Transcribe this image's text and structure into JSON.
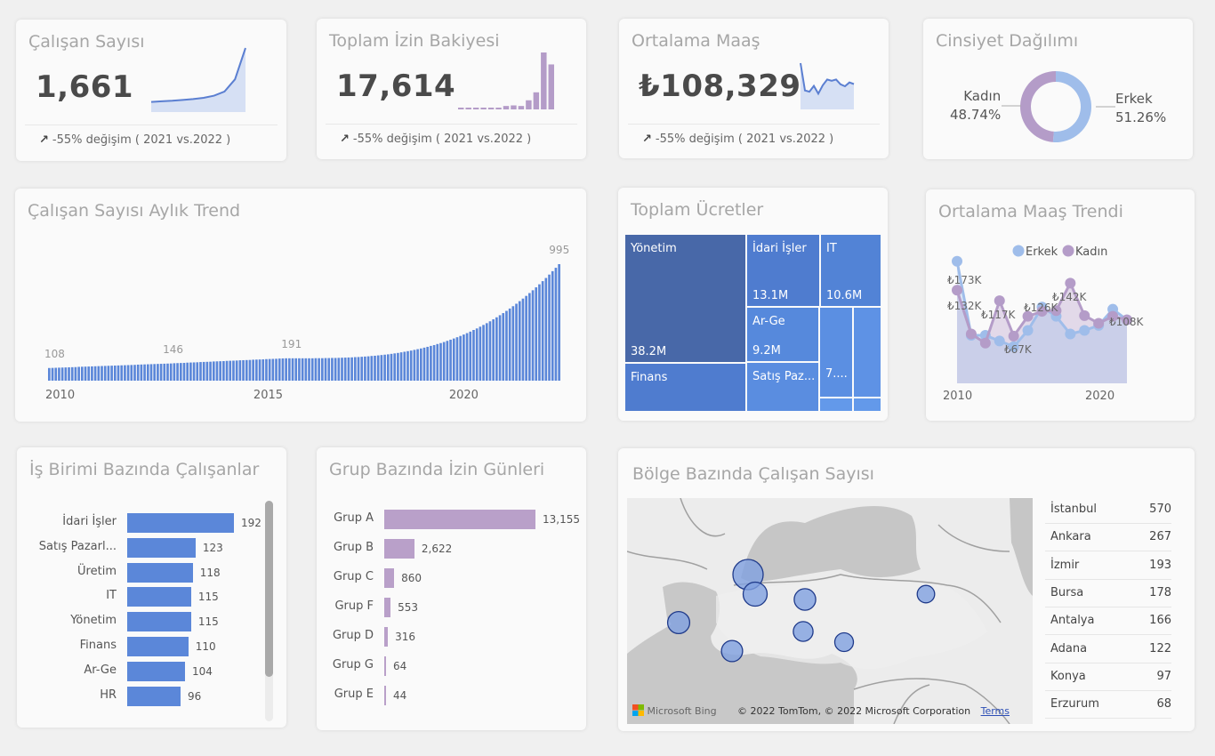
{
  "kpis": [
    {
      "title": "Çalışan Sayısı",
      "value": "1,661",
      "change_icon": "arrow-up-right-icon",
      "change_text": "-55% değişim ( 2021 vs.2022 )",
      "sparkline_type": "area",
      "sparkline_color": "#5b7fd1",
      "sparkline_values": [
        108,
        118,
        128,
        140,
        155,
        175,
        210,
        280,
        480,
        995
      ]
    },
    {
      "title": "Toplam İzin Bakiyesi",
      "value": "17,614",
      "change_icon": "arrow-up-right-icon",
      "change_text": "-55% değişim ( 2021 vs.2022 )",
      "sparkline_type": "bar",
      "sparkline_color": "#b49cc8",
      "sparkline_values": [
        3,
        2,
        2,
        2,
        2,
        3,
        6,
        7,
        6,
        16,
        30,
        100,
        79
      ]
    },
    {
      "title": "Ortalama Maaş",
      "value": "₺108,329",
      "change_icon": "arrow-up-right-icon",
      "change_text": "-55% değişim ( 2021 vs.2022 )",
      "sparkline_type": "line",
      "sparkline_color": "#5b7fd1",
      "sparkline_values": [
        173,
        88,
        84,
        102,
        78,
        104,
        122,
        118,
        122,
        107,
        101,
        113,
        108
      ]
    }
  ],
  "gender": {
    "title": "Cinsiyet Dağılımı",
    "slices": [
      {
        "label": "Kadın",
        "percent_label": "48.74%",
        "value": 48.74,
        "color": "#b49cc8"
      },
      {
        "label": "Erkek",
        "percent_label": "51.26%",
        "value": 51.26,
        "color": "#9fbdea"
      }
    ]
  },
  "monthly_trend": {
    "title": "Çalışan Sayısı Aylık Trend",
    "x_ticks": [
      "2010",
      "2015",
      "2020"
    ],
    "annotations": [
      {
        "label": "108",
        "index": 0
      },
      {
        "label": "146",
        "index": 36
      },
      {
        "label": "191",
        "index": 72
      },
      {
        "label": "995",
        "index": 155
      }
    ]
  },
  "treemap": {
    "title": "Toplam Ücretler",
    "cells": [
      {
        "name": "Yönetim",
        "value": "38.2M"
      },
      {
        "name": "İdari İşler",
        "value": "13.1M"
      },
      {
        "name": "IT",
        "value": "10.6M"
      },
      {
        "name": "Ar-Ge",
        "value": "9.2M"
      },
      {
        "name": "Finans",
        "value": ""
      },
      {
        "name": "Satış Paz...",
        "value": ""
      },
      {
        "name": "",
        "value": "7...."
      },
      {
        "name": "",
        "value": ""
      },
      {
        "name": "",
        "value": ""
      },
      {
        "name": "",
        "value": ""
      }
    ]
  },
  "salary_trend": {
    "title": "Ortalama Maaş Trendi",
    "x_ticks": [
      "2010",
      "2020"
    ],
    "legend": [
      {
        "label": "Erkek",
        "color": "#9fbdea"
      },
      {
        "label": "Kadın",
        "color": "#b49cc8"
      }
    ],
    "data_labels": [
      "₺173K",
      "₺132K",
      "₺117K",
      "₺67K",
      "₺126K",
      "₺142K",
      "₺108K"
    ]
  },
  "dept_employees": {
    "title": "İş Birimi Bazında Çalışanlar",
    "color": "#5b87d9"
  },
  "group_leave": {
    "title": "Grup Bazında İzin Günleri",
    "color": "#b9a0c9"
  },
  "region_map": {
    "title": "Bölge Bazında Çalışan Sayısı",
    "bing_label": "Microsoft Bing",
    "copyright": "© 2022 TomTom, © 2022 Microsoft Corporation",
    "terms_link": "Terms",
    "cities": [
      {
        "name": "İstanbul",
        "value": "570"
      },
      {
        "name": "Ankara",
        "value": "267"
      },
      {
        "name": "İzmir",
        "value": "193"
      },
      {
        "name": "Bursa",
        "value": "178"
      },
      {
        "name": "Antalya",
        "value": "166"
      },
      {
        "name": "Adana",
        "value": "122"
      },
      {
        "name": "Konya",
        "value": "97"
      },
      {
        "name": "Erzurum",
        "value": "68"
      }
    ]
  },
  "chart_data": [
    {
      "type": "bar",
      "title": "Çalışan Sayısı Aylık Trend",
      "xlabel": "",
      "ylabel": "",
      "x_range": [
        "2010",
        "2022"
      ],
      "x_ticks": [
        "2010",
        "2015",
        "2020"
      ],
      "series": [
        {
          "name": "Çalışan Sayısı",
          "color": "#5b87d9",
          "monthly_anchor_values": {
            "2010-01": 108,
            "2013-01": 146,
            "2016-01": 191,
            "2022-12": 995
          }
        }
      ],
      "ylim": [
        0,
        1050
      ]
    },
    {
      "type": "line",
      "title": "Ortalama Maaş Trendi",
      "categories": [
        "2010",
        "2011",
        "2012",
        "2013",
        "2014",
        "2015",
        "2016",
        "2017",
        "2018",
        "2019",
        "2020",
        "2021",
        "2022"
      ],
      "series": [
        {
          "name": "Erkek",
          "color": "#9fbdea",
          "values": [
            173,
            68,
            68,
            60,
            52,
            75,
            108,
            95,
            70,
            75,
            82,
            105,
            90
          ]
        },
        {
          "name": "Kadın",
          "color": "#b49cc8",
          "values": [
            132,
            70,
            57,
            117,
            67,
            95,
            102,
            103,
            142,
            96,
            85,
            95,
            90
          ]
        }
      ],
      "data_labels": [
        "₺173K",
        "₺132K",
        "₺117K",
        "₺67K",
        "₺126K",
        "₺142K",
        "₺108K"
      ],
      "x_ticks": [
        "2010",
        "2020"
      ],
      "legend": "top-center",
      "ylim": [
        0,
        200
      ]
    },
    {
      "type": "bar",
      "orientation": "horizontal",
      "title": "İş Birimi Bazında Çalışanlar",
      "categories": [
        "İdari İşler",
        "Satış Pazarl...",
        "Üretim",
        "IT",
        "Yönetim",
        "Finans",
        "Ar-Ge",
        "HR"
      ],
      "values": [
        192,
        123,
        118,
        115,
        115,
        110,
        104,
        96
      ],
      "max": 192
    },
    {
      "type": "bar",
      "orientation": "horizontal",
      "title": "Grup Bazında İzin Günleri",
      "categories": [
        "Grup A",
        "Grup B",
        "Grup C",
        "Grup F",
        "Grup D",
        "Grup G",
        "Grup E"
      ],
      "values": [
        13155,
        2622,
        860,
        553,
        316,
        64,
        44
      ],
      "value_labels": [
        "13,155",
        "2,622",
        "860",
        "553",
        "316",
        "64",
        "44"
      ],
      "max": 13155
    },
    {
      "type": "pie",
      "title": "Cinsiyet Dağılımı",
      "categories": [
        "Kadın",
        "Erkek"
      ],
      "values": [
        48.74,
        51.26
      ]
    }
  ]
}
